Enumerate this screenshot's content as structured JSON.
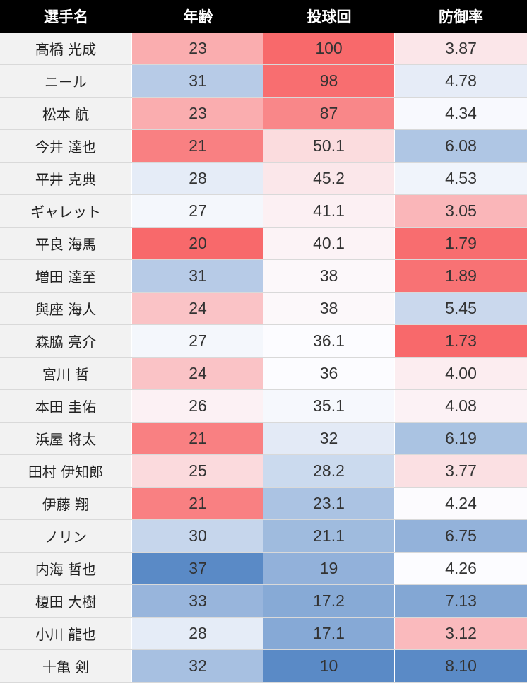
{
  "chart_data": {
    "type": "table",
    "columns": [
      "選手名",
      "年齢",
      "投球回",
      "防御率"
    ],
    "rows": [
      {
        "name": "髙橋 光成",
        "age": "23",
        "ip": "100",
        "era": "3.87"
      },
      {
        "name": "ニール",
        "age": "31",
        "ip": "98",
        "era": "4.78"
      },
      {
        "name": "松本 航",
        "age": "23",
        "ip": "87",
        "era": "4.34"
      },
      {
        "name": "今井 達也",
        "age": "21",
        "ip": "50.1",
        "era": "6.08"
      },
      {
        "name": "平井 克典",
        "age": "28",
        "ip": "45.2",
        "era": "4.53"
      },
      {
        "name": "ギャレット",
        "age": "27",
        "ip": "41.1",
        "era": "3.05"
      },
      {
        "name": "平良 海馬",
        "age": "20",
        "ip": "40.1",
        "era": "1.79"
      },
      {
        "name": "増田 達至",
        "age": "31",
        "ip": "38",
        "era": "1.89"
      },
      {
        "name": "與座 海人",
        "age": "24",
        "ip": "38",
        "era": "5.45"
      },
      {
        "name": "森脇 亮介",
        "age": "27",
        "ip": "36.1",
        "era": "1.73"
      },
      {
        "name": "宮川 哲",
        "age": "24",
        "ip": "36",
        "era": "4.00"
      },
      {
        "name": "本田 圭佑",
        "age": "26",
        "ip": "35.1",
        "era": "4.08"
      },
      {
        "name": "浜屋 将太",
        "age": "21",
        "ip": "32",
        "era": "6.19"
      },
      {
        "name": "田村 伊知郎",
        "age": "25",
        "ip": "28.2",
        "era": "3.77"
      },
      {
        "name": "伊藤 翔",
        "age": "21",
        "ip": "23.1",
        "era": "4.24"
      },
      {
        "name": "ノリン",
        "age": "30",
        "ip": "21.1",
        "era": "6.75"
      },
      {
        "name": "内海 哲也",
        "age": "37",
        "ip": "19",
        "era": "4.26"
      },
      {
        "name": "榎田 大樹",
        "age": "33",
        "ip": "17.2",
        "era": "7.13"
      },
      {
        "name": "小川 龍也",
        "age": "28",
        "ip": "17.1",
        "era": "3.12"
      },
      {
        "name": "十亀 剣",
        "age": "32",
        "ip": "10",
        "era": "8.10"
      }
    ],
    "color_scale": {
      "low": "#f8696b",
      "mid": "#fcfcff",
      "high": "#5a8ac6"
    }
  }
}
